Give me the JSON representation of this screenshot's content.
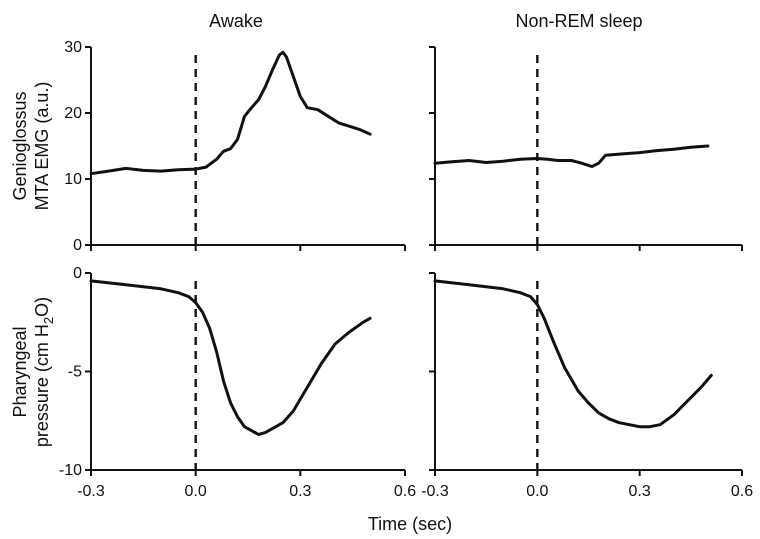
{
  "figure": {
    "col_titles": [
      "Awake",
      "Non-REM sleep"
    ],
    "xlabel": "Time (sec)",
    "ylabel_top": [
      "Genioglossus",
      "MTA EMG (a.u.)"
    ],
    "ylabel_bottom_line1": "Pharyngeal",
    "ylabel_bottom_line2": {
      "pre": "pressure (cm H",
      "sub": "2",
      "post": "O)"
    },
    "x_ticks": [
      "-0.3",
      "0.0",
      "0.3",
      "0.6"
    ],
    "y_ticks_top": [
      "0",
      "10",
      "20",
      "30"
    ],
    "y_ticks_bottom": [
      "0",
      "-5",
      "-10"
    ]
  },
  "chart_data": [
    {
      "type": "line",
      "panel": "top-left",
      "title": "Awake",
      "ylabel": "Genioglossus MTA EMG (a.u.)",
      "xlim": [
        -0.3,
        0.6
      ],
      "ylim": [
        0,
        30
      ],
      "marker_x": 0.0,
      "series": [
        {
          "x": [
            -0.3,
            -0.25,
            -0.2,
            -0.15,
            -0.1,
            -0.05,
            0.0,
            0.03,
            0.06,
            0.08,
            0.1,
            0.12,
            0.14,
            0.16,
            0.18,
            0.2,
            0.22,
            0.24,
            0.25,
            0.26,
            0.28,
            0.3,
            0.32,
            0.35,
            0.38,
            0.41,
            0.44,
            0.47,
            0.5
          ],
          "y": [
            10.8,
            11.2,
            11.6,
            11.3,
            11.2,
            11.4,
            11.5,
            11.8,
            13.0,
            14.2,
            14.6,
            16.0,
            19.5,
            20.8,
            22.0,
            24.0,
            26.5,
            28.8,
            29.2,
            28.5,
            25.5,
            22.5,
            20.8,
            20.5,
            19.5,
            18.5,
            18.0,
            17.5,
            16.8
          ]
        }
      ]
    },
    {
      "type": "line",
      "panel": "top-right",
      "title": "Non-REM sleep",
      "ylabel": "Genioglossus MTA EMG (a.u.)",
      "xlim": [
        -0.3,
        0.6
      ],
      "ylim": [
        0,
        30
      ],
      "marker_x": 0.0,
      "series": [
        {
          "x": [
            -0.3,
            -0.25,
            -0.2,
            -0.15,
            -0.1,
            -0.05,
            0.0,
            0.03,
            0.06,
            0.1,
            0.13,
            0.16,
            0.18,
            0.2,
            0.25,
            0.3,
            0.35,
            0.4,
            0.45,
            0.5
          ],
          "y": [
            12.4,
            12.6,
            12.8,
            12.5,
            12.7,
            13.0,
            13.1,
            13.0,
            12.8,
            12.8,
            12.4,
            11.9,
            12.4,
            13.6,
            13.8,
            14.0,
            14.3,
            14.5,
            14.8,
            15.0
          ]
        }
      ]
    },
    {
      "type": "line",
      "panel": "bottom-left",
      "title": "",
      "ylabel": "Pharyngeal pressure (cm H2O)",
      "xlim": [
        -0.3,
        0.6
      ],
      "ylim": [
        -10,
        0
      ],
      "marker_x": 0.0,
      "series": [
        {
          "x": [
            -0.3,
            -0.2,
            -0.1,
            -0.05,
            -0.02,
            0.0,
            0.02,
            0.04,
            0.06,
            0.08,
            0.1,
            0.12,
            0.14,
            0.16,
            0.18,
            0.2,
            0.22,
            0.25,
            0.28,
            0.3,
            0.33,
            0.36,
            0.4,
            0.44,
            0.48,
            0.5
          ],
          "y": [
            -0.4,
            -0.6,
            -0.8,
            -1.0,
            -1.2,
            -1.5,
            -2.0,
            -2.8,
            -4.0,
            -5.5,
            -6.6,
            -7.3,
            -7.8,
            -8.0,
            -8.2,
            -8.1,
            -7.9,
            -7.6,
            -7.0,
            -6.4,
            -5.5,
            -4.6,
            -3.6,
            -3.0,
            -2.5,
            -2.3
          ]
        }
      ]
    },
    {
      "type": "line",
      "panel": "bottom-right",
      "title": "",
      "ylabel": "Pharyngeal pressure (cm H2O)",
      "xlim": [
        -0.3,
        0.6
      ],
      "ylim": [
        -10,
        0
      ],
      "marker_x": 0.0,
      "series": [
        {
          "x": [
            -0.3,
            -0.2,
            -0.1,
            -0.05,
            -0.02,
            0.0,
            0.02,
            0.05,
            0.08,
            0.1,
            0.12,
            0.15,
            0.18,
            0.21,
            0.24,
            0.27,
            0.3,
            0.33,
            0.36,
            0.4,
            0.44,
            0.48,
            0.51
          ],
          "y": [
            -0.4,
            -0.6,
            -0.8,
            -1.0,
            -1.2,
            -1.6,
            -2.3,
            -3.6,
            -4.8,
            -5.4,
            -6.0,
            -6.6,
            -7.1,
            -7.4,
            -7.6,
            -7.7,
            -7.8,
            -7.8,
            -7.7,
            -7.2,
            -6.5,
            -5.8,
            -5.2
          ]
        }
      ]
    }
  ]
}
